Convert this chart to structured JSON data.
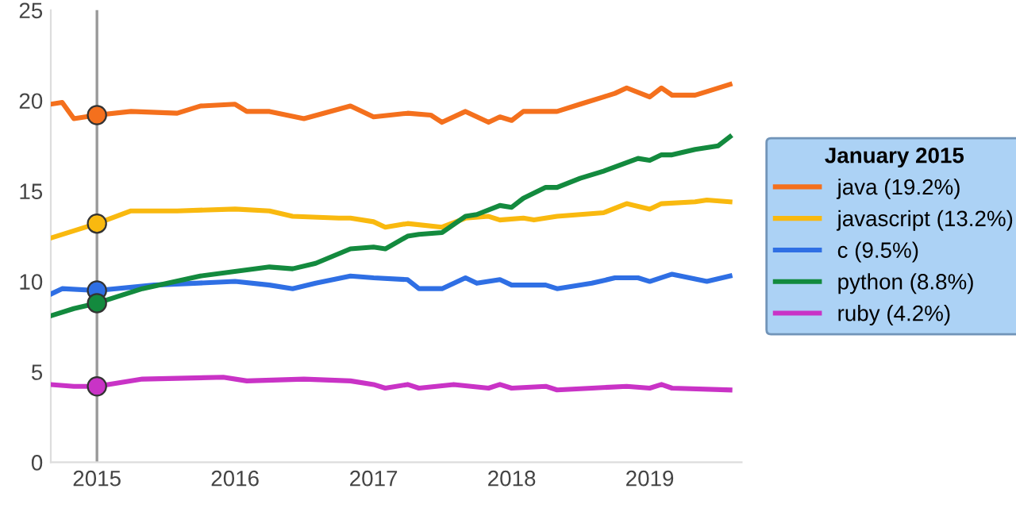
{
  "chart_data": {
    "type": "line",
    "legend_title": "January 2015",
    "legend": "right",
    "grid": false,
    "marker": "none",
    "line_style": "solid",
    "xlim": [
      "2014-09",
      "2019-09"
    ],
    "xticks": [
      "2015",
      "2016",
      "2017",
      "2018",
      "2019"
    ],
    "ylim": [
      0,
      25
    ],
    "yticks": [
      0,
      5,
      10,
      15,
      20,
      25
    ],
    "ref_lines": [
      {
        "axis": "x",
        "value": "2015-01",
        "color": "#999999"
      }
    ],
    "series": [
      {
        "name": "java (19.2%)",
        "color": "#f4701d",
        "x": [
          "2014-09",
          "2014-10",
          "2014-11",
          "2015-01",
          "2015-04",
          "2015-08",
          "2015-10",
          "2016-01",
          "2016-02",
          "2016-04",
          "2016-07",
          "2016-11",
          "2017-01",
          "2017-04",
          "2017-06",
          "2017-07",
          "2017-09",
          "2017-11",
          "2017-12",
          "2018-01",
          "2018-02",
          "2018-05",
          "2018-07",
          "2018-09",
          "2018-10",
          "2018-11",
          "2019-01",
          "2019-02",
          "2019-03",
          "2019-05",
          "2019-06",
          "2019-08"
        ],
        "values": [
          19.8,
          19.9,
          19.0,
          19.2,
          19.4,
          19.3,
          19.7,
          19.8,
          19.4,
          19.4,
          19.0,
          19.7,
          19.1,
          19.3,
          19.2,
          18.8,
          19.4,
          18.8,
          19.1,
          18.9,
          19.4,
          19.4,
          19.8,
          20.2,
          20.4,
          20.7,
          20.2,
          20.7,
          20.3,
          20.3,
          20.5,
          20.9
        ]
      },
      {
        "name": "javascript (13.2%)",
        "color": "#f9b90f",
        "x": [
          "2014-09",
          "2015-01",
          "2015-04",
          "2015-08",
          "2016-01",
          "2016-04",
          "2016-06",
          "2016-10",
          "2016-11",
          "2017-01",
          "2017-02",
          "2017-04",
          "2017-07",
          "2017-09",
          "2017-11",
          "2017-12",
          "2018-02",
          "2018-03",
          "2018-05",
          "2018-09",
          "2018-11",
          "2019-01",
          "2019-02",
          "2019-05",
          "2019-06",
          "2019-08"
        ],
        "values": [
          12.4,
          13.2,
          13.9,
          13.9,
          14.0,
          13.9,
          13.6,
          13.5,
          13.5,
          13.3,
          13.0,
          13.2,
          13.0,
          13.5,
          13.6,
          13.4,
          13.5,
          13.4,
          13.6,
          13.8,
          14.3,
          14.0,
          14.3,
          14.4,
          14.5,
          14.4
        ]
      },
      {
        "name": "c (9.5%)",
        "color": "#2f6fe4",
        "x": [
          "2014-09",
          "2014-10",
          "2015-01",
          "2015-06",
          "2016-01",
          "2016-04",
          "2016-06",
          "2016-08",
          "2016-11",
          "2017-01",
          "2017-04",
          "2017-05",
          "2017-07",
          "2017-09",
          "2017-10",
          "2017-12",
          "2018-01",
          "2018-04",
          "2018-05",
          "2018-08",
          "2018-10",
          "2018-12",
          "2019-01",
          "2019-03",
          "2019-06",
          "2019-08"
        ],
        "values": [
          9.3,
          9.6,
          9.5,
          9.8,
          10.0,
          9.8,
          9.6,
          9.9,
          10.3,
          10.2,
          10.1,
          9.6,
          9.6,
          10.2,
          9.9,
          10.1,
          9.8,
          9.8,
          9.6,
          9.9,
          10.2,
          10.2,
          10.0,
          10.4,
          10.0,
          10.3
        ]
      },
      {
        "name": "python (8.8%)",
        "color": "#138a3e",
        "x": [
          "2014-09",
          "2014-11",
          "2015-01",
          "2015-05",
          "2015-10",
          "2016-04",
          "2016-06",
          "2016-08",
          "2016-11",
          "2017-01",
          "2017-02",
          "2017-04",
          "2017-05",
          "2017-07",
          "2017-09",
          "2017-10",
          "2017-12",
          "2018-01",
          "2018-02",
          "2018-04",
          "2018-05",
          "2018-07",
          "2018-09",
          "2018-12",
          "2019-01",
          "2019-02",
          "2019-03",
          "2019-05",
          "2019-07",
          "2019-08"
        ],
        "values": [
          8.1,
          8.5,
          8.8,
          9.6,
          10.3,
          10.8,
          10.7,
          11.0,
          11.8,
          11.9,
          11.8,
          12.5,
          12.6,
          12.7,
          13.6,
          13.7,
          14.2,
          14.1,
          14.6,
          15.2,
          15.2,
          15.7,
          16.1,
          16.8,
          16.7,
          17.0,
          17.0,
          17.3,
          17.5,
          18.0
        ]
      },
      {
        "name": "ruby (4.2%)",
        "color": "#c933c6",
        "x": [
          "2014-09",
          "2014-11",
          "2015-01",
          "2015-05",
          "2015-12",
          "2016-02",
          "2016-07",
          "2016-11",
          "2017-01",
          "2017-02",
          "2017-04",
          "2017-05",
          "2017-08",
          "2017-11",
          "2017-12",
          "2018-01",
          "2018-04",
          "2018-05",
          "2018-08",
          "2018-11",
          "2019-01",
          "2019-02",
          "2019-03",
          "2019-08"
        ],
        "values": [
          4.3,
          4.2,
          4.2,
          4.6,
          4.7,
          4.5,
          4.6,
          4.5,
          4.3,
          4.1,
          4.3,
          4.1,
          4.3,
          4.1,
          4.3,
          4.1,
          4.2,
          4.0,
          4.1,
          4.2,
          4.1,
          4.3,
          4.1,
          4.0
        ]
      },
      {
        "type": "scatter",
        "marker": "circle",
        "x": [
          "2015-01",
          "2015-01",
          "2015-01",
          "2015-01",
          "2015-01"
        ],
        "values": [
          19.2,
          13.2,
          9.5,
          8.8,
          4.2
        ],
        "colors": [
          "#f4701d",
          "#f9b90f",
          "#2f6fe4",
          "#138a3e",
          "#c933c6"
        ]
      }
    ]
  }
}
